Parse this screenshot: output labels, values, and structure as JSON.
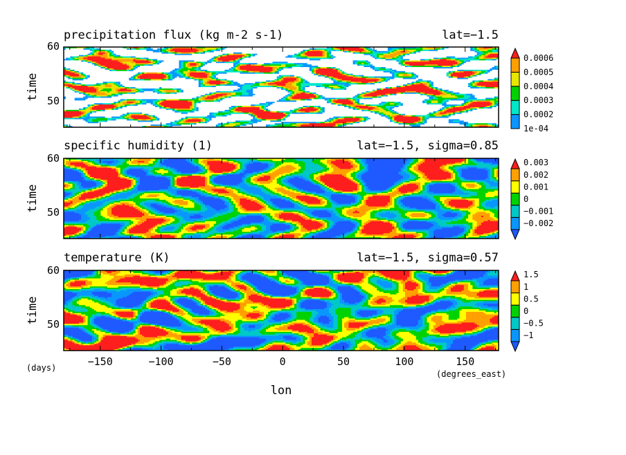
{
  "figure": {
    "x_axis_label": "lon",
    "x_units": "(degrees_east)",
    "y_units": "(days)",
    "x_tick_labels": [
      "-150",
      "-100",
      "-50",
      "0",
      "50",
      "100",
      "150"
    ]
  },
  "chart_data": [
    {
      "type": "heatmap",
      "title": "precipitation flux (kg m-2 s-1)",
      "subtitle": "lat=-1.5",
      "xlabel": "lon",
      "ylabel": "time",
      "x_units": "degrees_east",
      "y_units": "days",
      "xlim": [
        -180,
        177.5
      ],
      "ylim": [
        45,
        60
      ],
      "y_tick_labels": [
        "50",
        "60"
      ],
      "legend_position": "right",
      "colorbar": {
        "levels": [
          0.0001,
          0.0002,
          0.0003,
          0.0004,
          0.0005,
          0.0006
        ],
        "labels": [
          "1e-04",
          "0.0002",
          "0.0003",
          "0.0004",
          "0.0005",
          "0.0006"
        ],
        "colors": [
          "#0a96ff",
          "#00e6c8",
          "#00d200",
          "#e6e600",
          "#ffa000",
          "#ff1e1e"
        ],
        "below_color": "#ffffff",
        "extend": "max"
      }
    },
    {
      "type": "heatmap",
      "title": "specific humidity (1)",
      "subtitle": "lat=-1.5, sigma=0.85",
      "xlabel": "lon",
      "ylabel": "time",
      "x_units": "degrees_east",
      "y_units": "days",
      "xlim": [
        -180,
        177.5
      ],
      "ylim": [
        45,
        60
      ],
      "y_tick_labels": [
        "50",
        "60"
      ],
      "legend_position": "right",
      "colorbar": {
        "levels": [
          -0.002,
          -0.001,
          0,
          0.001,
          0.002,
          0.003
        ],
        "labels": [
          "-0.002",
          "-0.001",
          "0",
          "0.001",
          "0.002",
          "0.003"
        ],
        "colors": [
          "#1e5aff",
          "#0a96ff",
          "#00c8c8",
          "#00d200",
          "#ffff00",
          "#ffa000",
          "#ff1e1e"
        ],
        "extend": "both"
      }
    },
    {
      "type": "heatmap",
      "title": "temperature (K)",
      "subtitle": "lat=-1.5, sigma=0.57",
      "xlabel": "lon",
      "ylabel": "time",
      "x_units": "degrees_east",
      "y_units": "days",
      "xlim": [
        -180,
        177.5
      ],
      "ylim": [
        45,
        60
      ],
      "y_tick_labels": [
        "50",
        "60"
      ],
      "legend_position": "right",
      "colorbar": {
        "levels": [
          -1,
          -0.5,
          0,
          0.5,
          1,
          1.5
        ],
        "labels": [
          "-1",
          "-0.5",
          "0",
          "0.5",
          "1",
          "1.5"
        ],
        "colors": [
          "#1e5aff",
          "#0a96ff",
          "#00c8c8",
          "#00d200",
          "#ffff00",
          "#ffa000",
          "#ff1e1e"
        ],
        "extend": "both"
      }
    }
  ]
}
